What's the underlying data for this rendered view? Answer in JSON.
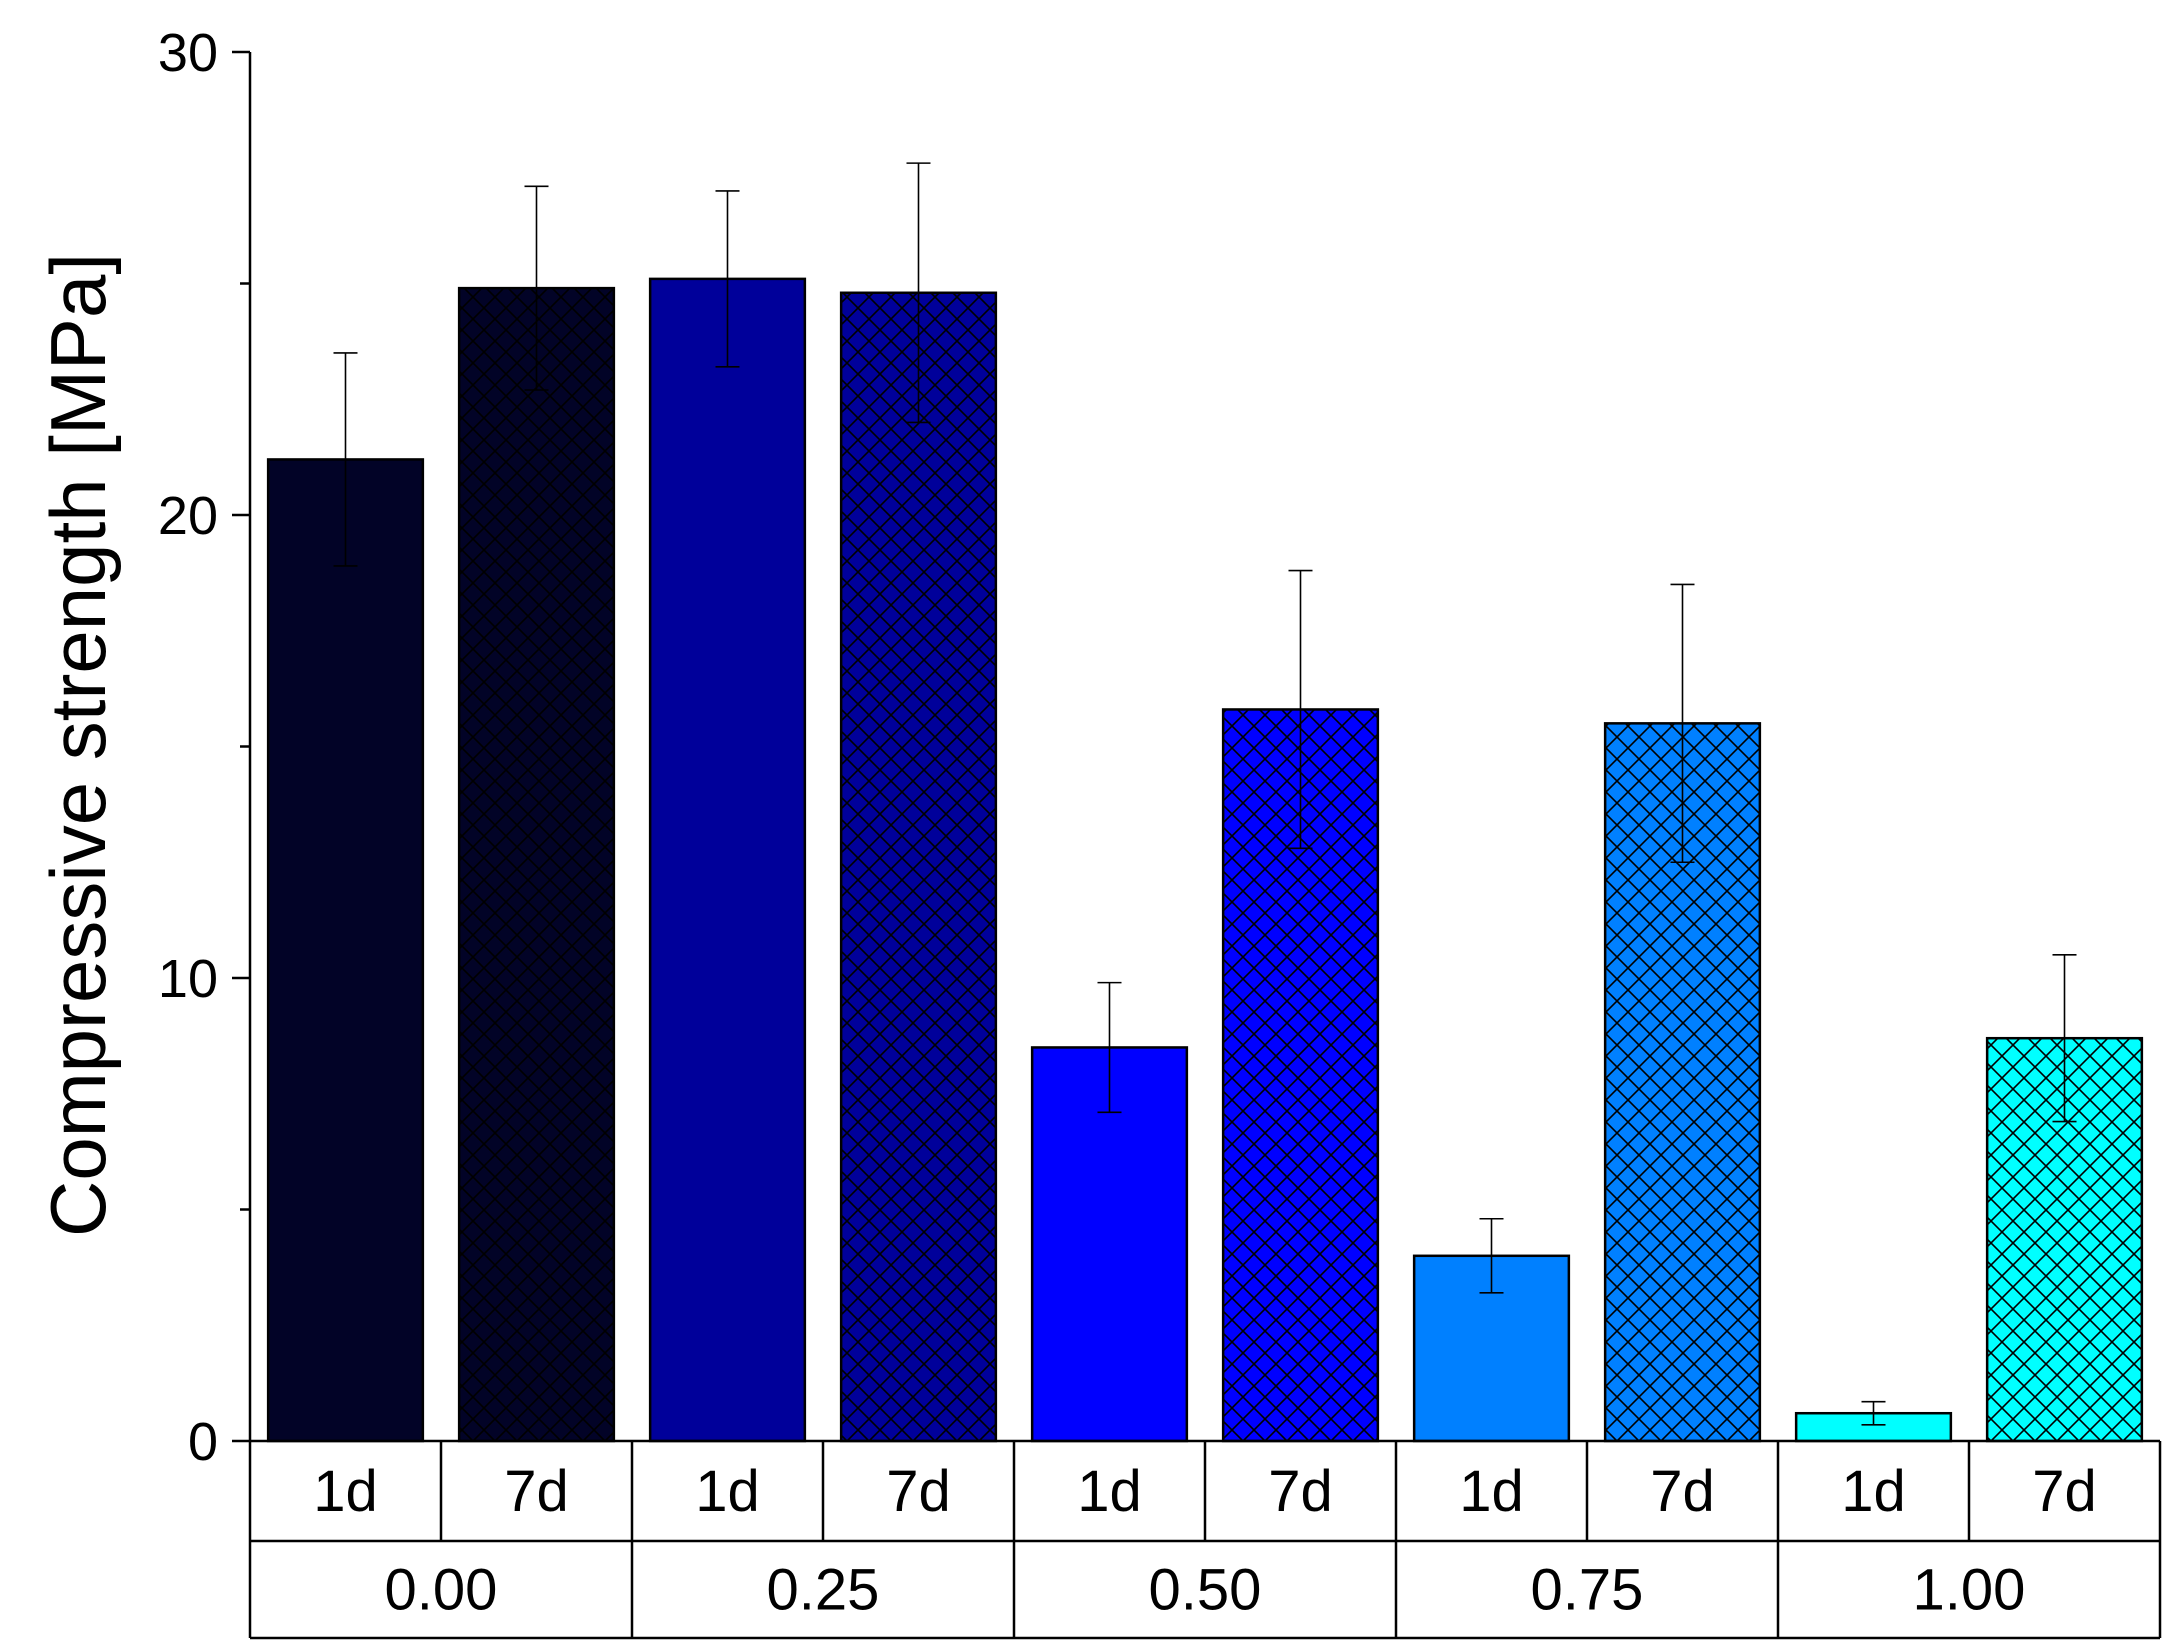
{
  "chart_data": {
    "type": "bar",
    "ylabel": "Compressive strength [MPa]",
    "ylim": [
      0,
      30
    ],
    "yticks": [
      0,
      10,
      20,
      30
    ],
    "groups": [
      "0.00",
      "0.25",
      "0.50",
      "0.75",
      "1.00"
    ],
    "subcategories": [
      "1d",
      "7d"
    ],
    "bars": [
      {
        "group": "0.00",
        "sub": "1d",
        "value": 21.2,
        "error": 2.3,
        "color": "#020327",
        "hatched": false
      },
      {
        "group": "0.00",
        "sub": "7d",
        "value": 24.9,
        "error": 2.2,
        "color": "#020327",
        "hatched": true
      },
      {
        "group": "0.25",
        "sub": "1d",
        "value": 25.1,
        "error": 1.9,
        "color": "#00009A",
        "hatched": false
      },
      {
        "group": "0.25",
        "sub": "7d",
        "value": 24.8,
        "error": 2.8,
        "color": "#00009A",
        "hatched": true
      },
      {
        "group": "0.50",
        "sub": "1d",
        "value": 8.5,
        "error": 1.4,
        "color": "#0000FF",
        "hatched": false
      },
      {
        "group": "0.50",
        "sub": "7d",
        "value": 15.8,
        "error": 3.0,
        "color": "#0000FF",
        "hatched": true
      },
      {
        "group": "0.75",
        "sub": "1d",
        "value": 4.0,
        "error": 0.8,
        "color": "#0080FF",
        "hatched": false
      },
      {
        "group": "0.75",
        "sub": "7d",
        "value": 15.5,
        "error": 3.0,
        "color": "#0080FF",
        "hatched": true
      },
      {
        "group": "1.00",
        "sub": "1d",
        "value": 0.6,
        "error": 0.25,
        "color": "#00FFFF",
        "hatched": false
      },
      {
        "group": "1.00",
        "sub": "7d",
        "value": 8.7,
        "error": 1.8,
        "color": "#00FFFF",
        "hatched": true
      }
    ],
    "grid": false,
    "legend": "none"
  }
}
